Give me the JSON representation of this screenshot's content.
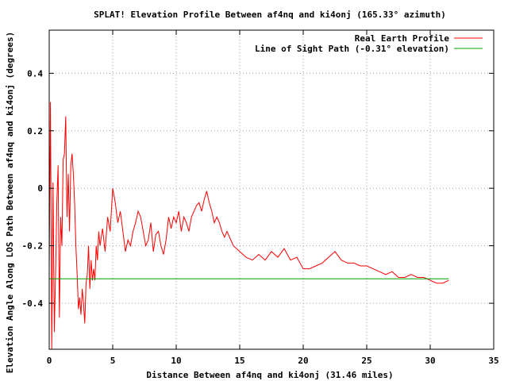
{
  "chart_data": {
    "type": "line",
    "title": "SPLAT! Elevation Profile Between af4nq and ki4onj (165.33° azimuth)",
    "xlabel": "Distance Between af4nq and ki4onj (31.46 miles)",
    "ylabel": "Elevation Angle Along LOS Path Between af4nq and ki4onj (degrees)",
    "xlim": [
      0,
      35
    ],
    "ylim": [
      -0.56,
      0.55
    ],
    "x_ticks": [
      0,
      5,
      10,
      15,
      20,
      25,
      30,
      35
    ],
    "x_tick_labels": [
      "0",
      "5",
      "10",
      "15",
      "20",
      "25",
      "30",
      "35"
    ],
    "y_ticks": [
      0.4,
      0.2,
      0,
      -0.2,
      -0.4
    ],
    "y_tick_labels": [
      "0.4",
      "0.2",
      "0",
      "-0.2",
      "-0.4"
    ],
    "grid": true,
    "legend_position": "top-right",
    "series": [
      {
        "name": "Real Earth Profile",
        "color": "#ff0000",
        "x": [
          0,
          0.1,
          0.2,
          0.3,
          0.4,
          0.5,
          0.6,
          0.7,
          0.8,
          0.9,
          1.0,
          1.1,
          1.2,
          1.3,
          1.4,
          1.5,
          1.6,
          1.7,
          1.8,
          1.9,
          2.0,
          2.1,
          2.2,
          2.3,
          2.4,
          2.5,
          2.6,
          2.7,
          2.8,
          2.9,
          3.0,
          3.1,
          3.2,
          3.3,
          3.4,
          3.5,
          3.6,
          3.7,
          3.8,
          3.9,
          4.0,
          4.2,
          4.4,
          4.6,
          4.8,
          5.0,
          5.2,
          5.4,
          5.6,
          5.8,
          6.0,
          6.2,
          6.4,
          6.6,
          6.8,
          7.0,
          7.2,
          7.4,
          7.6,
          7.8,
          8.0,
          8.2,
          8.4,
          8.6,
          8.8,
          9.0,
          9.2,
          9.4,
          9.6,
          9.8,
          10.0,
          10.2,
          10.4,
          10.6,
          10.8,
          11.0,
          11.2,
          11.4,
          11.6,
          11.8,
          12.0,
          12.2,
          12.4,
          12.6,
          12.8,
          13.0,
          13.2,
          13.4,
          13.6,
          13.8,
          14.0,
          14.5,
          15.0,
          15.5,
          16.0,
          16.5,
          17.0,
          17.5,
          18.0,
          18.5,
          19.0,
          19.5,
          20.0,
          20.5,
          21.0,
          21.5,
          22.0,
          22.5,
          23.0,
          23.5,
          24.0,
          24.5,
          25.0,
          25.5,
          26.0,
          26.5,
          27.0,
          27.5,
          28.0,
          28.5,
          29.0,
          29.5,
          30.0,
          30.5,
          31.0,
          31.46
        ],
        "y": [
          -0.28,
          0.3,
          -0.56,
          0.02,
          -0.5,
          -0.3,
          -0.05,
          0.08,
          -0.45,
          -0.1,
          -0.2,
          0.1,
          0.12,
          0.25,
          -0.1,
          0.05,
          -0.15,
          0.08,
          0.12,
          0.05,
          -0.05,
          -0.2,
          -0.3,
          -0.42,
          -0.38,
          -0.44,
          -0.35,
          -0.4,
          -0.47,
          -0.33,
          -0.3,
          -0.2,
          -0.35,
          -0.25,
          -0.32,
          -0.28,
          -0.32,
          -0.2,
          -0.25,
          -0.15,
          -0.2,
          -0.14,
          -0.22,
          -0.1,
          -0.15,
          0.0,
          -0.05,
          -0.12,
          -0.08,
          -0.15,
          -0.22,
          -0.18,
          -0.2,
          -0.15,
          -0.12,
          -0.08,
          -0.1,
          -0.15,
          -0.2,
          -0.18,
          -0.12,
          -0.22,
          -0.16,
          -0.15,
          -0.2,
          -0.23,
          -0.18,
          -0.1,
          -0.14,
          -0.1,
          -0.12,
          -0.08,
          -0.15,
          -0.1,
          -0.12,
          -0.15,
          -0.1,
          -0.08,
          -0.06,
          -0.05,
          -0.08,
          -0.04,
          -0.01,
          -0.05,
          -0.08,
          -0.12,
          -0.1,
          -0.12,
          -0.15,
          -0.17,
          -0.15,
          -0.2,
          -0.22,
          -0.24,
          -0.25,
          -0.23,
          -0.25,
          -0.22,
          -0.24,
          -0.21,
          -0.25,
          -0.24,
          -0.28,
          -0.28,
          -0.27,
          -0.26,
          -0.24,
          -0.22,
          -0.25,
          -0.26,
          -0.26,
          -0.27,
          -0.27,
          -0.28,
          -0.29,
          -0.3,
          -0.29,
          -0.31,
          -0.31,
          -0.3,
          -0.31,
          -0.31,
          -0.32,
          -0.33,
          -0.33,
          -0.32
        ]
      },
      {
        "name": "Line of Sight Path (-0.31° elevation)",
        "color": "#00a000",
        "x": [
          0,
          31.46
        ],
        "y": [
          -0.315,
          -0.315
        ]
      }
    ]
  }
}
